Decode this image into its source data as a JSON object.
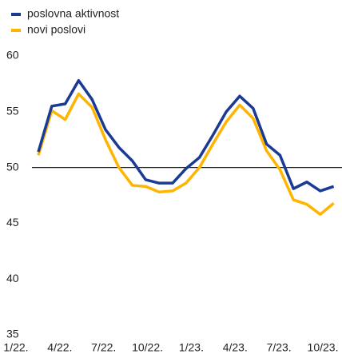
{
  "chart_data": {
    "type": "line",
    "categories": [
      "1/22.",
      null,
      null,
      "4/22.",
      null,
      null,
      "7/22.",
      null,
      null,
      "10/22.",
      null,
      null,
      "1/23.",
      null,
      null,
      "4/23.",
      null,
      null,
      "7/23.",
      null,
      null,
      "10/23.",
      null
    ],
    "series": [
      {
        "name": "poslovna aktivnost",
        "color": "#1a3a93",
        "values": [
          51.4,
          55.5,
          55.7,
          57.8,
          56.1,
          53.4,
          51.8,
          50.6,
          48.9,
          48.6,
          48.6,
          49.9,
          50.9,
          52.9,
          55.0,
          56.4,
          55.3,
          52.1,
          51.1,
          48.1,
          48.7,
          47.9,
          48.3
        ]
      },
      {
        "name": "novi poslovi",
        "color": "#ffb400",
        "values": [
          51.1,
          55.1,
          54.3,
          56.6,
          55.4,
          52.5,
          50.0,
          48.4,
          48.3,
          47.8,
          47.9,
          48.6,
          50.0,
          52.1,
          54.1,
          55.6,
          54.4,
          51.5,
          49.8,
          47.1,
          46.7,
          45.8,
          46.8
        ]
      }
    ],
    "reference_line": 50,
    "ylim": [
      35,
      60
    ],
    "yticks": [
      35,
      40,
      45,
      50,
      55,
      60
    ],
    "legend": "top-left"
  }
}
